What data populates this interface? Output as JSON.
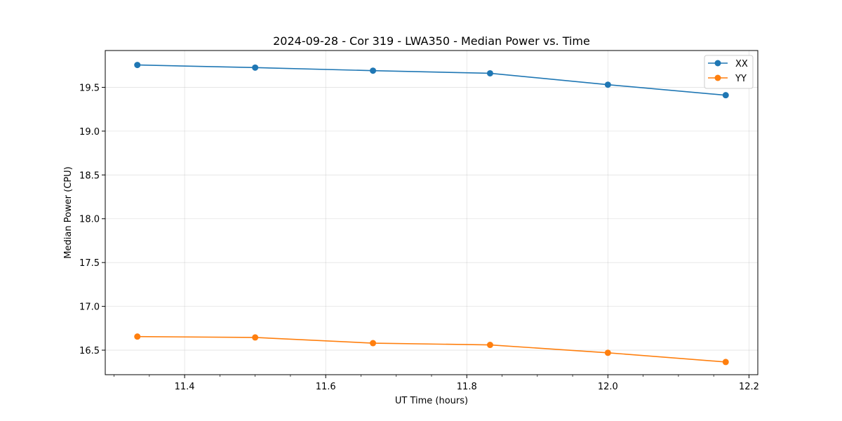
{
  "chart_data": {
    "type": "line",
    "title": "2024-09-28 - Cor 319 - LWA350 - Median Power vs. Time",
    "xlabel": "UT Time (hours)",
    "ylabel": "Median Power (CPU)",
    "xlim": [
      11.2875,
      12.2125
    ],
    "ylim": [
      16.22,
      19.92
    ],
    "xticks": [
      11.4,
      11.6,
      11.8,
      12.0,
      12.2
    ],
    "xtick_labels": [
      "11.4",
      "11.6",
      "11.8",
      "12.0",
      "12.2"
    ],
    "xminor_step": 0.05,
    "yticks": [
      16.5,
      17.0,
      17.5,
      18.0,
      18.5,
      19.0,
      19.5
    ],
    "ytick_labels": [
      "16.5",
      "17.0",
      "17.5",
      "18.0",
      "18.5",
      "19.0",
      "19.5"
    ],
    "grid": true,
    "legend_position": "top-right",
    "x": [
      11.333,
      11.5,
      11.667,
      11.833,
      12.0,
      12.167
    ],
    "series": [
      {
        "name": "XX",
        "color": "#1f77b4",
        "values": [
          19.755,
          19.725,
          19.69,
          19.66,
          19.53,
          19.41
        ]
      },
      {
        "name": "YY",
        "color": "#ff7f0e",
        "values": [
          16.655,
          16.645,
          16.58,
          16.56,
          16.47,
          16.365
        ]
      }
    ]
  }
}
